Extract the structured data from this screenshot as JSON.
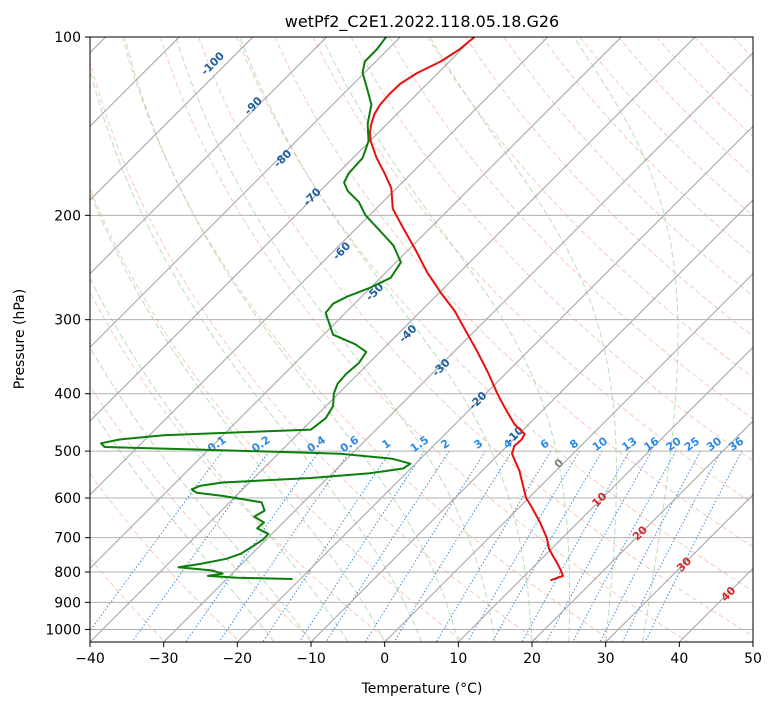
{
  "chart_data": {
    "type": "line",
    "title": "wetPf2_C2E1.2022.118.05.18.G26",
    "xlabel": "Temperature (°C)",
    "ylabel": "Pressure (hPa)",
    "xlim": [
      -40,
      50
    ],
    "ylim": [
      1050,
      100
    ],
    "y_scale": "log",
    "grid": true,
    "x_ticks": [
      "−40",
      "−30",
      "−20",
      "−10",
      "0",
      "10",
      "20",
      "30",
      "40",
      "50"
    ],
    "x_tick_values": [
      -40,
      -30,
      -20,
      -10,
      0,
      10,
      20,
      30,
      40,
      50
    ],
    "y_ticks": [
      "100",
      "200",
      "300",
      "400",
      "500",
      "600",
      "700",
      "800",
      "900",
      "1000"
    ],
    "y_tick_values": [
      100,
      200,
      300,
      400,
      500,
      600,
      700,
      800,
      900,
      1000
    ],
    "series": [
      {
        "role": "temperature",
        "color": "#e8100e",
        "points": [
          [
            826,
            22.5
          ],
          [
            812,
            24.2
          ],
          [
            800,
            24.0
          ],
          [
            780,
            23.6
          ],
          [
            750,
            22.8
          ],
          [
            730,
            22.3
          ],
          [
            700,
            22.0
          ],
          [
            660,
            21.1
          ],
          [
            620,
            19.9
          ],
          [
            600,
            19.2
          ],
          [
            560,
            18.6
          ],
          [
            540,
            18.3
          ],
          [
            520,
            17.7
          ],
          [
            505,
            17.3
          ],
          [
            490,
            17.6
          ],
          [
            478,
            18.6
          ],
          [
            468,
            19.0
          ],
          [
            450,
            17.6
          ],
          [
            420,
            16.2
          ],
          [
            400,
            15.3
          ],
          [
            370,
            14.1
          ],
          [
            340,
            12.6
          ],
          [
            310,
            10.8
          ],
          [
            290,
            9.5
          ],
          [
            270,
            7.6
          ],
          [
            250,
            5.8
          ],
          [
            230,
            4.3
          ],
          [
            210,
            2.5
          ],
          [
            195,
            1.1
          ],
          [
            180,
            0.9
          ],
          [
            170,
            0.0
          ],
          [
            160,
            -1.1
          ],
          [
            150,
            -1.9
          ],
          [
            145,
            -2.0
          ],
          [
            140,
            -1.8
          ],
          [
            135,
            -1.4
          ],
          [
            130,
            -0.6
          ],
          [
            125,
            0.6
          ],
          [
            120,
            2.1
          ],
          [
            115,
            4.4
          ],
          [
            110,
            7.6
          ],
          [
            105,
            10.1
          ],
          [
            100,
            12.2
          ]
        ]
      },
      {
        "role": "dewpoint",
        "color": "#0b7e0b",
        "points": [
          [
            822,
            -12.5
          ],
          [
            818,
            -20.0
          ],
          [
            812,
            -24.0
          ],
          [
            805,
            -22.0
          ],
          [
            795,
            -23.5
          ],
          [
            785,
            -28.0
          ],
          [
            775,
            -25.0
          ],
          [
            760,
            -21.5
          ],
          [
            745,
            -19.5
          ],
          [
            725,
            -18.0
          ],
          [
            705,
            -16.5
          ],
          [
            690,
            -15.8
          ],
          [
            675,
            -17.3
          ],
          [
            660,
            -16.4
          ],
          [
            645,
            -17.7
          ],
          [
            630,
            -16.3
          ],
          [
            610,
            -16.7
          ],
          [
            595,
            -22.0
          ],
          [
            588,
            -25.5
          ],
          [
            580,
            -26.2
          ],
          [
            572,
            -25.0
          ],
          [
            565,
            -22.0
          ],
          [
            555,
            -10.0
          ],
          [
            545,
            -2.0
          ],
          [
            535,
            2.5
          ],
          [
            525,
            3.5
          ],
          [
            515,
            1.0
          ],
          [
            505,
            -6.0
          ],
          [
            497,
            -25.0
          ],
          [
            492,
            -38.0
          ],
          [
            485,
            -38.5
          ],
          [
            478,
            -36.0
          ],
          [
            470,
            -30.0
          ],
          [
            465,
            -20.0
          ],
          [
            460,
            -10.0
          ],
          [
            440,
            -8.0
          ],
          [
            420,
            -7.0
          ],
          [
            400,
            -6.9
          ],
          [
            385,
            -6.4
          ],
          [
            370,
            -5.2
          ],
          [
            355,
            -3.5
          ],
          [
            340,
            -2.5
          ],
          [
            330,
            -4.0
          ],
          [
            318,
            -7.0
          ],
          [
            305,
            -7.5
          ],
          [
            292,
            -8.0
          ],
          [
            282,
            -7.0
          ],
          [
            274,
            -5.0
          ],
          [
            265,
            -2.0
          ],
          [
            255,
            0.8
          ],
          [
            240,
            2.2
          ],
          [
            225,
            1.2
          ],
          [
            210,
            -1.0
          ],
          [
            200,
            -2.6
          ],
          [
            190,
            -3.5
          ],
          [
            182,
            -5.0
          ],
          [
            176,
            -5.5
          ],
          [
            170,
            -4.9
          ],
          [
            160,
            -3.0
          ],
          [
            150,
            -2.2
          ],
          [
            140,
            -2.3
          ],
          [
            130,
            -1.8
          ],
          [
            122,
            -2.4
          ],
          [
            115,
            -3.0
          ],
          [
            110,
            -2.7
          ],
          [
            105,
            -1.1
          ],
          [
            100,
            0.2
          ]
        ]
      }
    ],
    "background_lines": {
      "dry_adiabats_color": "#f5a58a",
      "moist_adiabats_color": "#9ccf9c",
      "mixing_ratio_color": "#1f77d4",
      "isotherm_color": "#a0a0a0"
    },
    "annotations": {
      "isotherm_labels": [
        {
          "text": "-100",
          "x": -23.0,
          "p": 112,
          "color": "#1f5fa0"
        },
        {
          "text": "-90",
          "x": -17.5,
          "p": 132,
          "color": "#1f5fa0"
        },
        {
          "text": "-80",
          "x": -13.5,
          "p": 162,
          "color": "#1f5fa0"
        },
        {
          "text": "-70",
          "x": -9.5,
          "p": 188,
          "color": "#1f5fa0"
        },
        {
          "text": "-60",
          "x": -5.5,
          "p": 232,
          "color": "#1f5fa0"
        },
        {
          "text": "-50",
          "x": -1.0,
          "p": 272,
          "color": "#1f5fa0"
        },
        {
          "text": "-40",
          "x": 3.5,
          "p": 320,
          "color": "#1f5fa0"
        },
        {
          "text": "-30",
          "x": 8.0,
          "p": 365,
          "color": "#1f5fa0"
        },
        {
          "text": "-20",
          "x": 13.0,
          "p": 415,
          "color": "#1f5fa0"
        },
        {
          "text": "-10",
          "x": 18.0,
          "p": 475,
          "color": "#1f5fa0"
        },
        {
          "text": "0",
          "x": 24.0,
          "p": 530,
          "color": "#808080"
        },
        {
          "text": "10",
          "x": 29.5,
          "p": 610,
          "color": "#d62728"
        },
        {
          "text": "20",
          "x": 35.0,
          "p": 695,
          "color": "#d62728"
        },
        {
          "text": "30",
          "x": 41.0,
          "p": 785,
          "color": "#d62728"
        },
        {
          "text": "40",
          "x": 47.0,
          "p": 880,
          "color": "#d62728"
        }
      ],
      "mixing_ratio_labels": [
        "0.1",
        "0.2",
        "0.4",
        "0.6",
        "1",
        "1.5",
        "2",
        "3",
        "4",
        "6",
        "8",
        "10",
        "13",
        "16",
        "20",
        "25",
        "30",
        "36"
      ],
      "mixing_ratio_label_x": [
        -22.5,
        -16.5,
        -9.0,
        -4.5,
        0.5,
        5.0,
        8.5,
        13.0,
        17.0,
        22.0,
        26.0,
        29.5,
        33.5,
        36.5,
        39.5,
        42.0,
        45.0,
        48.0
      ]
    }
  }
}
